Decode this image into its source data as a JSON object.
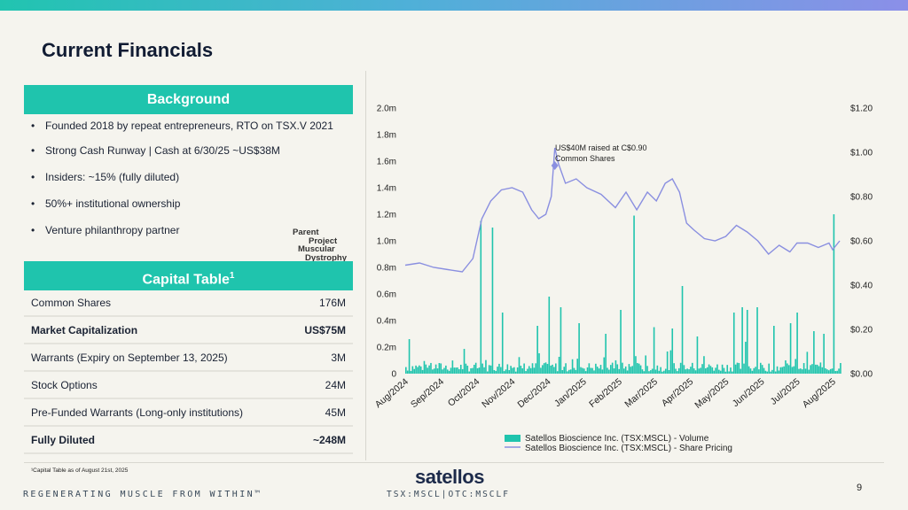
{
  "page": {
    "title": "Current Financials",
    "page_number": "9"
  },
  "background": {
    "header": "Background",
    "bullets": [
      "Founded 2018 by repeat entrepreneurs, RTO on TSX.V 2021",
      "Strong Cash Runway | Cash at 6/30/25 ~US$38M",
      "Insiders: ~15% (fully diluted)",
      "50%+ institutional ownership",
      "Venture philanthropy partner"
    ],
    "partner_logo": [
      "Parent",
      "Project",
      "Muscular",
      "Dystrophy"
    ]
  },
  "capital_table": {
    "header": "Capital Table",
    "header_sup": "1",
    "rows": [
      {
        "label": "Common Shares",
        "value": "176M"
      },
      {
        "label": "Market Capitalization",
        "value": "US$75M"
      },
      {
        "label": "Warrants (Expiry on September 13, 2025)",
        "value": "3M"
      },
      {
        "label": "Stock Options",
        "value": "24M"
      },
      {
        "label": "Pre-Funded Warrants (Long-only institutions)",
        "value": "45M"
      },
      {
        "label": "Fully Diluted",
        "value": "~248M"
      }
    ],
    "footnote": "¹Capital Table as of August 21st, 2025"
  },
  "footer": {
    "tagline": "REGENERATING MUSCLE FROM WITHIN™",
    "logo": "satellos",
    "ticker": "TSX:MSCL|OTC:MSCLF"
  },
  "colors": {
    "accent": "#1fc4ad",
    "volume": "#1fc4ad",
    "price": "#8a8fe0",
    "title": "#111c33"
  },
  "chart_data": {
    "type": "bar+line",
    "title": "",
    "x_labels": [
      "Aug/2024",
      "Sep/2024",
      "Oct/2024",
      "Nov/2024",
      "Dec/2024",
      "Jan/2025",
      "Feb/2025",
      "Mar/2025",
      "Apr/2025",
      "May/2025",
      "Jun/2025",
      "Jul/2025",
      "Aug/2025"
    ],
    "y_left": {
      "range": [
        0,
        2.0
      ],
      "ticks": [
        "0",
        "0.2m",
        "0.4m",
        "0.6m",
        "0.8m",
        "1.0m",
        "1.2m",
        "1.4m",
        "1.6m",
        "1.8m",
        "2.0m"
      ],
      "unit": "millions of shares"
    },
    "y_right": {
      "range": [
        0,
        1.2
      ],
      "ticks": [
        "$0.00",
        "$0.20",
        "$0.40",
        "$0.60",
        "$0.80",
        "$1.00",
        "$1.20"
      ],
      "unit": "CAD"
    },
    "annotation": {
      "lines": [
        "US$40M raised at C$0.90",
        "Common Shares"
      ],
      "month": 4.2,
      "price": 0.94
    },
    "series": [
      {
        "name": "Satellos Bioscience Inc. (TSX:MSCL) - Volume",
        "kind": "bar",
        "spikes": [
          [
            0.1,
            0.26
          ],
          [
            2.1,
            1.15
          ],
          [
            2.45,
            1.1
          ],
          [
            2.7,
            0.46
          ],
          [
            3.7,
            0.36
          ],
          [
            4.0,
            0.58
          ],
          [
            4.35,
            0.5
          ],
          [
            4.85,
            0.38
          ],
          [
            5.6,
            0.3
          ],
          [
            6.05,
            0.48
          ],
          [
            6.4,
            1.19
          ],
          [
            6.95,
            0.35
          ],
          [
            7.5,
            0.34
          ],
          [
            7.75,
            0.66
          ],
          [
            8.2,
            0.28
          ],
          [
            9.2,
            0.46
          ],
          [
            9.45,
            0.5
          ],
          [
            9.55,
            0.24
          ],
          [
            9.6,
            0.48
          ],
          [
            9.85,
            0.5
          ],
          [
            10.35,
            0.36
          ],
          [
            10.8,
            0.38
          ],
          [
            11.0,
            0.46
          ],
          [
            11.45,
            0.32
          ],
          [
            11.75,
            0.3
          ],
          [
            12.0,
            1.2
          ],
          [
            12.2,
            0.08
          ]
        ]
      },
      {
        "name": "Satellos Bioscience Inc. (TSX:MSCL) - Share Pricing",
        "kind": "line",
        "points": [
          [
            0,
            0.49
          ],
          [
            0.4,
            0.5
          ],
          [
            0.8,
            0.48
          ],
          [
            1.2,
            0.47
          ],
          [
            1.6,
            0.46
          ],
          [
            1.9,
            0.52
          ],
          [
            2.15,
            0.7
          ],
          [
            2.4,
            0.78
          ],
          [
            2.7,
            0.83
          ],
          [
            3.0,
            0.84
          ],
          [
            3.3,
            0.82
          ],
          [
            3.55,
            0.74
          ],
          [
            3.75,
            0.7
          ],
          [
            3.95,
            0.72
          ],
          [
            4.1,
            0.8
          ],
          [
            4.2,
            1.02
          ],
          [
            4.3,
            0.95
          ],
          [
            4.5,
            0.86
          ],
          [
            4.8,
            0.88
          ],
          [
            5.1,
            0.84
          ],
          [
            5.5,
            0.81
          ],
          [
            5.9,
            0.75
          ],
          [
            6.2,
            0.82
          ],
          [
            6.5,
            0.74
          ],
          [
            6.8,
            0.82
          ],
          [
            7.05,
            0.78
          ],
          [
            7.3,
            0.86
          ],
          [
            7.5,
            0.88
          ],
          [
            7.7,
            0.82
          ],
          [
            7.9,
            0.68
          ],
          [
            8.1,
            0.65
          ],
          [
            8.4,
            0.61
          ],
          [
            8.7,
            0.6
          ],
          [
            9.0,
            0.62
          ],
          [
            9.3,
            0.67
          ],
          [
            9.6,
            0.64
          ],
          [
            9.9,
            0.6
          ],
          [
            10.2,
            0.54
          ],
          [
            10.5,
            0.58
          ],
          [
            10.8,
            0.55
          ],
          [
            11.0,
            0.59
          ],
          [
            11.3,
            0.59
          ],
          [
            11.6,
            0.57
          ],
          [
            11.9,
            0.59
          ],
          [
            12.0,
            0.56
          ],
          [
            12.2,
            0.6
          ]
        ]
      }
    ]
  }
}
